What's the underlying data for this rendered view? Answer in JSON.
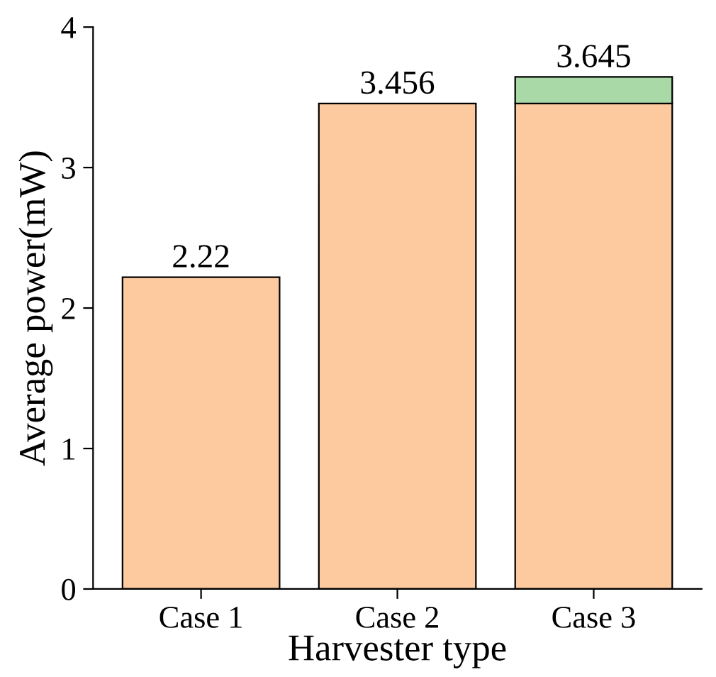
{
  "chart_data": {
    "type": "bar",
    "stacked": true,
    "xlabel": "Harvester type",
    "ylabel": "Average power(mW)",
    "categories": [
      "Case 1",
      "Case 2",
      "Case 3"
    ],
    "series": [
      {
        "color": "#fdcaa0",
        "values": [
          2.22,
          3.456,
          3.456
        ]
      },
      {
        "color": "#a9d9a6",
        "values": [
          null,
          null,
          0.189
        ]
      }
    ],
    "totals": [
      "2.22",
      "3.456",
      "3.645"
    ],
    "ylim": [
      0,
      4
    ],
    "yticks": [
      0,
      1,
      2,
      3,
      4
    ],
    "grid": false,
    "legend": false
  }
}
